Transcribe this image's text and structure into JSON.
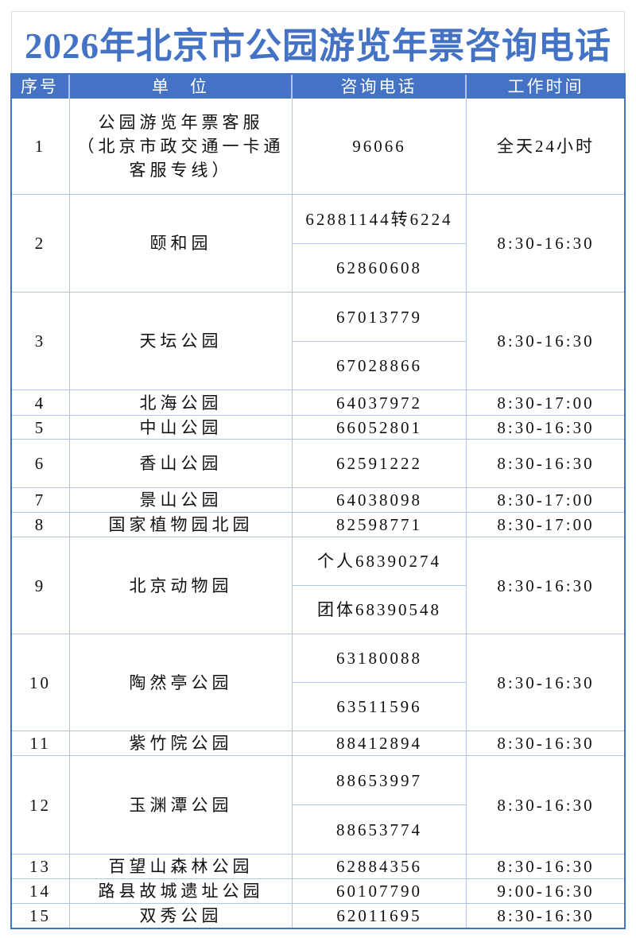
{
  "title": "2026年北京市公园游览年票咨询电话",
  "headers": {
    "no": "序号",
    "unit": "单　位",
    "phone": "咨询电话",
    "hours": "工作时间"
  },
  "colors": {
    "accent": "#4472c4",
    "grid": "#b4c6e7"
  },
  "rows": [
    {
      "no": "1",
      "unit": "公园游览年票客服\n（北京市政交通一卡通\n客服专线）",
      "phones": [
        "96066"
      ],
      "hours": "全天24小时"
    },
    {
      "no": "2",
      "unit": "颐和园",
      "phones": [
        "62881144转6224",
        "62860608"
      ],
      "hours": "8:30-16:30"
    },
    {
      "no": "3",
      "unit": "天坛公园",
      "phones": [
        "67013779",
        "67028866"
      ],
      "hours": "8:30-16:30"
    },
    {
      "no": "4",
      "unit": "北海公园",
      "phones": [
        "64037972"
      ],
      "hours": "8:30-17:00"
    },
    {
      "no": "5",
      "unit": "中山公园",
      "phones": [
        "66052801"
      ],
      "hours": "8:30-16:30"
    },
    {
      "no": "6",
      "unit": "香山公园",
      "phones": [
        "62591222"
      ],
      "hours": "8:30-16:30"
    },
    {
      "no": "7",
      "unit": "景山公园",
      "phones": [
        "64038098"
      ],
      "hours": "8:30-17:00"
    },
    {
      "no": "8",
      "unit": "国家植物园北园",
      "phones": [
        "82598771"
      ],
      "hours": "8:30-17:00"
    },
    {
      "no": "9",
      "unit": "北京动物园",
      "phones": [
        "个人68390274",
        "团体68390548"
      ],
      "hours": "8:30-16:30"
    },
    {
      "no": "10",
      "unit": "陶然亭公园",
      "phones": [
        "63180088",
        "63511596"
      ],
      "hours": "8:30-16:30"
    },
    {
      "no": "11",
      "unit": "紫竹院公园",
      "phones": [
        "88412894"
      ],
      "hours": "8:30-16:30"
    },
    {
      "no": "12",
      "unit": "玉渊潭公园",
      "phones": [
        "88653997",
        "88653774"
      ],
      "hours": "8:30-16:30"
    },
    {
      "no": "13",
      "unit": "百望山森林公园",
      "phones": [
        "62884356"
      ],
      "hours": "8:30-16:30"
    },
    {
      "no": "14",
      "unit": "路县故城遗址公园",
      "phones": [
        "60107790"
      ],
      "hours": "9:00-16:30"
    },
    {
      "no": "15",
      "unit": "双秀公园",
      "phones": [
        "62011695"
      ],
      "hours": "8:30-16:30"
    }
  ]
}
